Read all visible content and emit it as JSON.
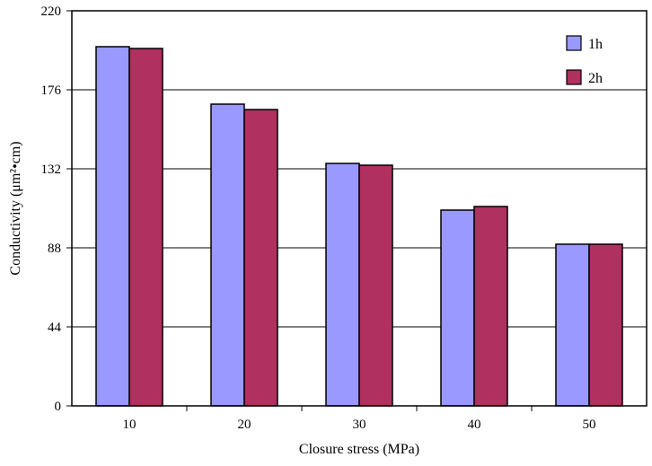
{
  "chart_data": {
    "type": "bar",
    "title": "",
    "xlabel": "Closure stress (MPa)",
    "ylabel": "Conductivity (μm²•cm)",
    "categories": [
      "10",
      "20",
      "30",
      "40",
      "50"
    ],
    "series": [
      {
        "name": "1h",
        "values": [
          200,
          168,
          135,
          109,
          90
        ],
        "color": "#9999ff"
      },
      {
        "name": "2h",
        "values": [
          199,
          165,
          134,
          111,
          90
        ],
        "color": "#b03060"
      }
    ],
    "yticks": [
      "0",
      "44",
      "88",
      "132",
      "176",
      "220"
    ],
    "ylim": [
      0,
      220
    ],
    "grid": "horizontal",
    "legend_position": "top-right"
  }
}
